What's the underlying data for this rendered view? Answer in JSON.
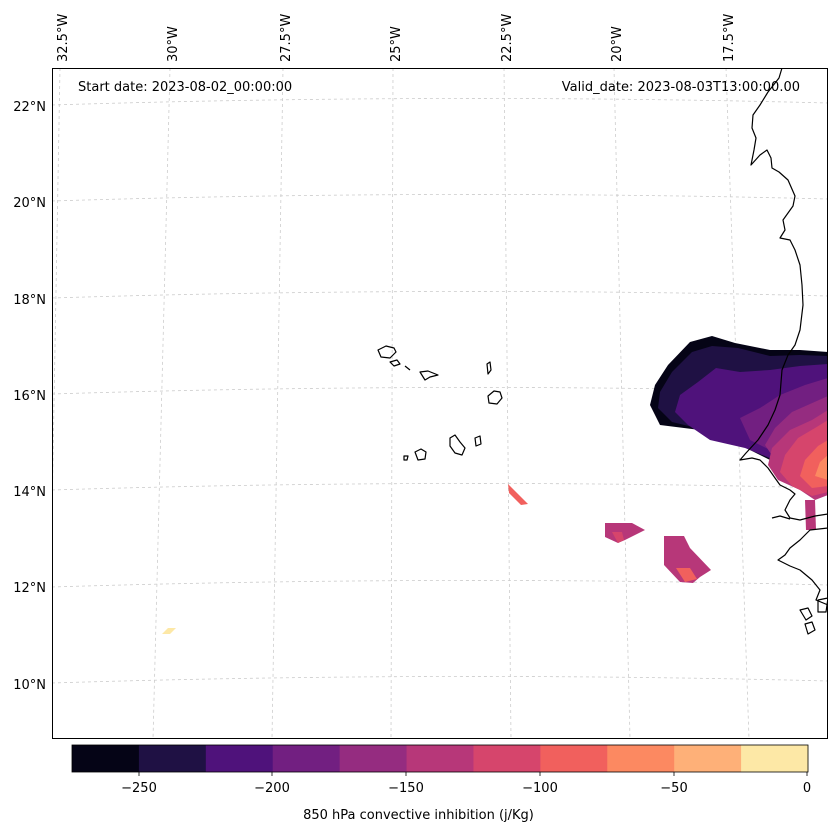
{
  "annotations": {
    "start_date": "Start date: 2023-08-02_00:00:00",
    "valid_date": "Valid_date: 2023-08-03T13:00:00.00"
  },
  "longitude_ticks": [
    "32.5°W",
    "30°W",
    "27.5°W",
    "25°W",
    "22.5°W",
    "20°W",
    "17.5°W"
  ],
  "latitude_ticks": [
    "22°N",
    "20°N",
    "18°N",
    "16°N",
    "14°N",
    "12°N",
    "10°N"
  ],
  "colorbar": {
    "label": "850 hPa convective inhibition (j/Kg)",
    "ticks": [
      "−250",
      "−200",
      "−150",
      "−100",
      "−50",
      "0"
    ],
    "levels": [
      -275,
      -250,
      -225,
      -200,
      -175,
      -150,
      -125,
      -100,
      -75,
      -50,
      -25,
      0
    ],
    "colors": [
      "#050416",
      "#1f1144",
      "#4f127b",
      "#721f81",
      "#952c80",
      "#b73779",
      "#d6456c",
      "#f1605d",
      "#fc8961",
      "#feb078",
      "#fde8a6"
    ]
  },
  "colors": {
    "coastline": "#000000",
    "grid": "#cccccc"
  }
}
